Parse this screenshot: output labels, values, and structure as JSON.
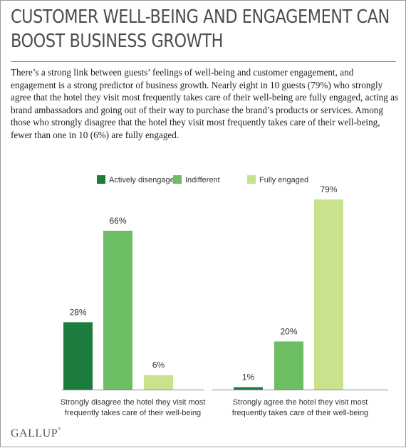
{
  "header": {
    "title_line1": "CUSTOMER WELL-BEING AND ENGAGEMENT CAN",
    "title_line2": "BOOST BUSINESS GROWTH"
  },
  "intro": "There’s a strong link between guests’ feelings of well-being and customer engagement, and engagement is a strong predictor of business growth. Nearly eight in 10 guests (79%) who strongly agree that the hotel they visit most frequently takes care of their well-being are fully engaged, acting as brand ambassadors and going out of their way to purchase the brand’s products or services. Among those who strongly disagree that the hotel they visit most frequently takes care of their well-being, fewer than one in 10 (6%) are fully engaged.",
  "colors": {
    "actively_disengaged": "#1b7c3d",
    "indifferent": "#6cbd63",
    "fully_engaged": "#c9e28e"
  },
  "chart_data": {
    "type": "bar",
    "title": "",
    "xlabel": "",
    "ylabel": "",
    "ylim": [
      0,
      100
    ],
    "grid": false,
    "legend_position": "top-center",
    "series_names": [
      "Actively disengaged",
      "Indifferent",
      "Fully engaged"
    ],
    "groups": [
      {
        "label_line1": "Strongly disagree the hotel they visit most",
        "label_line2": "frequently takes care of their well-being",
        "values": [
          28,
          66,
          6
        ],
        "value_labels": [
          "28%",
          "66%",
          "6%"
        ]
      },
      {
        "label_line1": "Strongly agree the hotel they visit most",
        "label_line2": "frequently takes care of their well-being",
        "values": [
          1,
          20,
          79
        ],
        "value_labels": [
          "1%",
          "20%",
          "79%"
        ]
      }
    ]
  },
  "footer": {
    "logo_text": "GALLUP",
    "logo_mark": "®"
  }
}
